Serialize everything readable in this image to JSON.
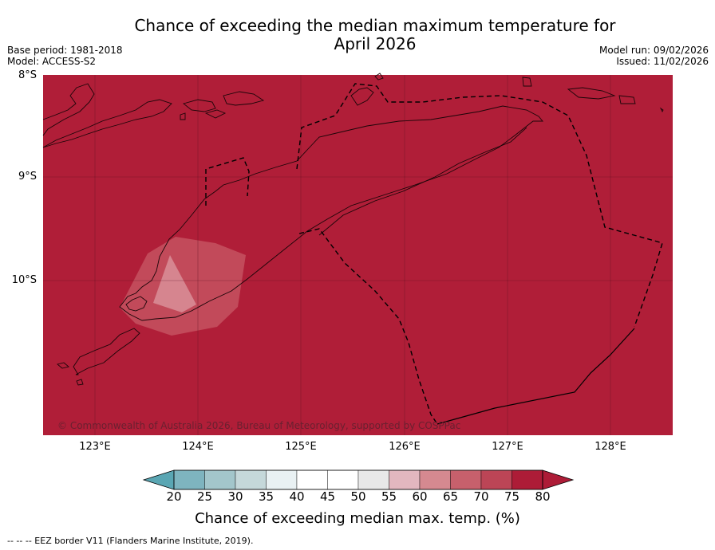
{
  "title_line1": "Chance of exceeding the median maximum temperature for",
  "title_line2": "April 2026",
  "base_period": "Base period: 1981-2018",
  "model": "Model: ACCESS-S2",
  "model_run": "Model run: 09/02/2026",
  "issued": "Issued: 11/02/2026",
  "lat_labels": [
    "8°S",
    "9°S",
    "10°S"
  ],
  "lon_labels": [
    "123°E",
    "124°E",
    "125°E",
    "126°E",
    "127°E",
    "128°E"
  ],
  "copyright": "© Commonwealth of Australia 2026, Bureau of Meteorology, supported by COSPPac",
  "colorbar": {
    "ticks": [
      "20",
      "25",
      "30",
      "35",
      "40",
      "45",
      "50",
      "55",
      "60",
      "65",
      "70",
      "75",
      "80"
    ],
    "colors": [
      "#5aa6b3",
      "#7eb4bf",
      "#a3c6cb",
      "#c5d8da",
      "#e9f1f3",
      "#ffffff",
      "#ffffff",
      "#e8e8e8",
      "#e2b7bf",
      "#d58990",
      "#c7606c",
      "#bc4556",
      "#ad1c37"
    ],
    "title": "Chance of exceeding median max. temp. (%)"
  },
  "footnote": "--  --  -- EEZ border V11 (Flanders Marine Institute, 2019).",
  "map_fill_color": "#b01e38",
  "anomaly_color_outer": "#c24a5a",
  "anomaly_color_inner": "#d6858f"
}
